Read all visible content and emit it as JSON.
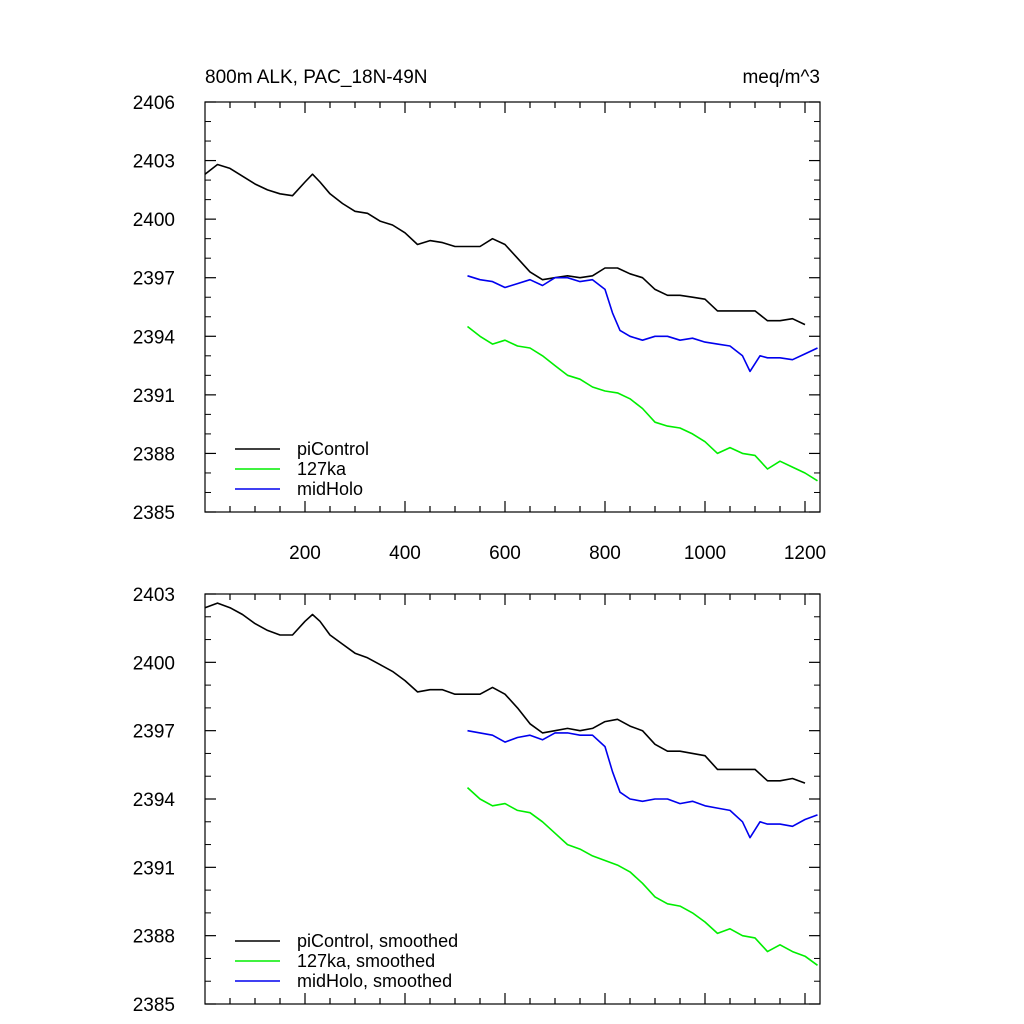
{
  "chart_data": [
    {
      "type": "line",
      "title_left": "800m ALK, PAC_18N-49N",
      "title_right": "meq/m^3",
      "ylim": [
        2385,
        2406
      ],
      "yticks": [
        2385,
        2388,
        2391,
        2394,
        2397,
        2400,
        2403,
        2406
      ],
      "xlim": [
        0,
        1230
      ],
      "xticks": [
        200,
        400,
        600,
        800,
        1000,
        1200
      ],
      "xtick_labels": [
        "200",
        "400",
        "600",
        "800",
        "1000",
        "1200"
      ],
      "legend_position": "bottom-left",
      "series": [
        {
          "name": "piControl",
          "color": "#000000",
          "x": [
            0,
            25,
            50,
            75,
            100,
            125,
            150,
            175,
            200,
            215,
            230,
            250,
            275,
            300,
            325,
            350,
            375,
            400,
            425,
            450,
            475,
            500,
            525,
            550,
            575,
            600,
            625,
            650,
            675,
            700,
            725,
            750,
            775,
            800,
            825,
            850,
            875,
            900,
            925,
            950,
            975,
            1000,
            1025,
            1050,
            1075,
            1100,
            1125,
            1150,
            1175,
            1200
          ],
          "y": [
            2402.3,
            2402.8,
            2402.6,
            2402.2,
            2401.8,
            2401.5,
            2401.3,
            2401.2,
            2401.9,
            2402.3,
            2401.9,
            2401.3,
            2400.8,
            2400.4,
            2400.3,
            2399.9,
            2399.7,
            2399.3,
            2398.7,
            2398.9,
            2398.8,
            2398.6,
            2398.6,
            2398.6,
            2399.0,
            2398.7,
            2398.0,
            2397.3,
            2396.9,
            2397.0,
            2397.1,
            2397.0,
            2397.1,
            2397.5,
            2397.5,
            2397.2,
            2397.0,
            2396.4,
            2396.1,
            2396.1,
            2396.0,
            2395.9,
            2395.3,
            2395.3,
            2395.3,
            2395.3,
            2394.8,
            2394.8,
            2394.9,
            2394.6
          ]
        },
        {
          "name": "127ka",
          "color": "#00ee00",
          "x": [
            525,
            550,
            575,
            600,
            625,
            650,
            675,
            700,
            725,
            750,
            775,
            800,
            825,
            850,
            875,
            900,
            925,
            950,
            975,
            1000,
            1025,
            1050,
            1075,
            1100,
            1125,
            1150,
            1175,
            1200,
            1225
          ],
          "y": [
            2394.5,
            2394.0,
            2393.6,
            2393.8,
            2393.5,
            2393.4,
            2393.0,
            2392.5,
            2392.0,
            2391.8,
            2391.4,
            2391.2,
            2391.1,
            2390.8,
            2390.3,
            2389.6,
            2389.4,
            2389.3,
            2389.0,
            2388.6,
            2388.0,
            2388.3,
            2388.0,
            2387.9,
            2387.2,
            2387.6,
            2387.3,
            2387.0,
            2386.6
          ]
        },
        {
          "name": "midHolo",
          "color": "#0000ee",
          "x": [
            525,
            550,
            575,
            600,
            625,
            650,
            675,
            700,
            725,
            750,
            775,
            800,
            815,
            830,
            850,
            875,
            900,
            925,
            950,
            975,
            1000,
            1025,
            1050,
            1075,
            1090,
            1110,
            1125,
            1150,
            1175,
            1200,
            1225
          ],
          "y": [
            2397.1,
            2396.9,
            2396.8,
            2396.5,
            2396.7,
            2396.9,
            2396.6,
            2397.0,
            2397.0,
            2396.8,
            2396.9,
            2396.4,
            2395.2,
            2394.3,
            2394.0,
            2393.8,
            2394.0,
            2394.0,
            2393.8,
            2393.9,
            2393.7,
            2393.6,
            2393.5,
            2393.0,
            2392.2,
            2393.0,
            2392.9,
            2392.9,
            2392.8,
            2393.1,
            2393.4
          ]
        }
      ]
    },
    {
      "type": "line",
      "ylim": [
        2385,
        2403
      ],
      "yticks": [
        2385,
        2388,
        2391,
        2394,
        2397,
        2400,
        2403
      ],
      "xlim": [
        0,
        1230
      ],
      "xticks": [
        200,
        400,
        600,
        800,
        1000,
        1200
      ],
      "legend_position": "bottom-left",
      "series": [
        {
          "name": "piControl, smoothed",
          "color": "#000000",
          "x": [
            0,
            25,
            50,
            75,
            100,
            125,
            150,
            175,
            200,
            215,
            230,
            250,
            275,
            300,
            325,
            350,
            375,
            400,
            425,
            450,
            475,
            500,
            525,
            550,
            575,
            600,
            625,
            650,
            675,
            700,
            725,
            750,
            775,
            800,
            825,
            850,
            875,
            900,
            925,
            950,
            975,
            1000,
            1025,
            1050,
            1075,
            1100,
            1125,
            1150,
            1175,
            1200
          ],
          "y": [
            2402.4,
            2402.6,
            2402.4,
            2402.1,
            2401.7,
            2401.4,
            2401.2,
            2401.2,
            2401.8,
            2402.1,
            2401.8,
            2401.2,
            2400.8,
            2400.4,
            2400.2,
            2399.9,
            2399.6,
            2399.2,
            2398.7,
            2398.8,
            2398.8,
            2398.6,
            2398.6,
            2398.6,
            2398.9,
            2398.6,
            2398.0,
            2397.3,
            2396.9,
            2397.0,
            2397.1,
            2397.0,
            2397.1,
            2397.4,
            2397.5,
            2397.2,
            2397.0,
            2396.4,
            2396.1,
            2396.1,
            2396.0,
            2395.9,
            2395.3,
            2395.3,
            2395.3,
            2395.3,
            2394.8,
            2394.8,
            2394.9,
            2394.7
          ]
        },
        {
          "name": "127ka, smoothed",
          "color": "#00ee00",
          "x": [
            525,
            550,
            575,
            600,
            625,
            650,
            675,
            700,
            725,
            750,
            775,
            800,
            825,
            850,
            875,
            900,
            925,
            950,
            975,
            1000,
            1025,
            1050,
            1075,
            1100,
            1125,
            1150,
            1175,
            1200,
            1225
          ],
          "y": [
            2394.5,
            2394.0,
            2393.7,
            2393.8,
            2393.5,
            2393.4,
            2393.0,
            2392.5,
            2392.0,
            2391.8,
            2391.5,
            2391.3,
            2391.1,
            2390.8,
            2390.3,
            2389.7,
            2389.4,
            2389.3,
            2389.0,
            2388.6,
            2388.1,
            2388.3,
            2388.0,
            2387.9,
            2387.3,
            2387.6,
            2387.3,
            2387.1,
            2386.7
          ]
        },
        {
          "name": "midHolo, smoothed",
          "color": "#0000ee",
          "x": [
            525,
            550,
            575,
            600,
            625,
            650,
            675,
            700,
            725,
            750,
            775,
            800,
            815,
            830,
            850,
            875,
            900,
            925,
            950,
            975,
            1000,
            1025,
            1050,
            1075,
            1090,
            1110,
            1125,
            1150,
            1175,
            1200,
            1225
          ],
          "y": [
            2397.0,
            2396.9,
            2396.8,
            2396.5,
            2396.7,
            2396.8,
            2396.6,
            2396.9,
            2396.9,
            2396.8,
            2396.8,
            2396.3,
            2395.2,
            2394.3,
            2394.0,
            2393.9,
            2394.0,
            2394.0,
            2393.8,
            2393.9,
            2393.7,
            2393.6,
            2393.5,
            2393.0,
            2392.3,
            2393.0,
            2392.9,
            2392.9,
            2392.8,
            2393.1,
            2393.3
          ]
        }
      ]
    }
  ]
}
